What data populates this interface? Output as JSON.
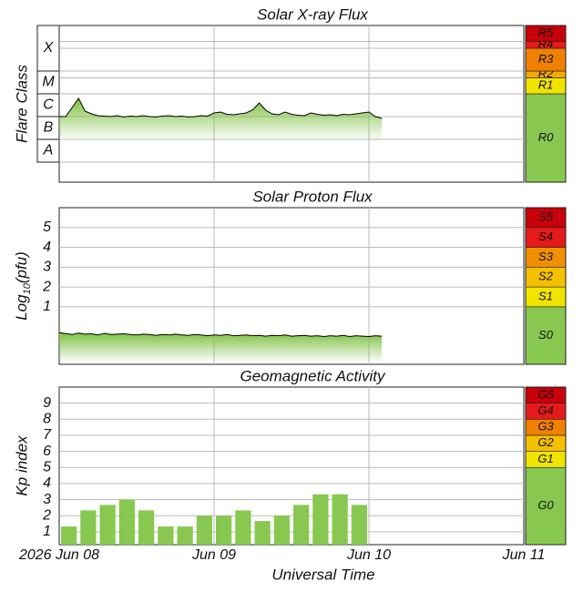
{
  "chart_data": [
    {
      "type": "line",
      "title": "Solar X-ray Flux",
      "ylabel": "Flare Class",
      "xlim": [
        0,
        72
      ],
      "xticks": [
        24,
        48
      ],
      "ylim": [
        -8.88,
        -2
      ],
      "classes": [
        {
          "label": "A",
          "from": -8
        },
        {
          "label": "B",
          "from": -7
        },
        {
          "label": "C",
          "from": -6
        },
        {
          "label": "M",
          "from": -5
        },
        {
          "label": "X",
          "from": -4
        }
      ],
      "scale": [
        {
          "label": "R0",
          "color": "#88c850"
        },
        {
          "label": "R1",
          "from": -5,
          "color": "#f0e400"
        },
        {
          "label": "R2",
          "from": -4.3,
          "color": "#f5a800"
        },
        {
          "label": "R3",
          "from": -4,
          "color": "#f08000"
        },
        {
          "label": "R4",
          "from": -3,
          "color": "#e51a1a"
        },
        {
          "label": "R5",
          "from": -2.7,
          "color": "#c8000a"
        }
      ],
      "series": [
        {
          "color": "#000000",
          "fill": "#7dc142",
          "x": [
            0,
            1,
            2,
            3,
            4,
            5,
            6,
            7,
            8,
            9,
            10,
            11,
            12,
            13,
            14,
            15,
            16,
            17,
            18,
            19,
            20,
            21,
            22,
            23,
            24,
            25,
            26,
            27,
            28,
            29,
            30,
            31,
            32,
            33,
            34,
            35,
            36,
            37,
            38,
            39,
            40,
            41,
            42,
            43,
            44,
            45,
            46,
            47,
            48,
            49,
            50
          ],
          "values": [
            -6.0,
            -6.0,
            -5.6,
            -5.2,
            -5.76,
            -5.88,
            -5.96,
            -5.98,
            -6.0,
            -5.96,
            -6.02,
            -5.98,
            -6.0,
            -5.96,
            -6.0,
            -6.02,
            -5.98,
            -5.96,
            -6.0,
            -5.98,
            -6.02,
            -6.0,
            -5.96,
            -5.98,
            -5.84,
            -5.8,
            -5.9,
            -5.92,
            -5.88,
            -5.84,
            -5.7,
            -5.4,
            -5.72,
            -5.88,
            -5.92,
            -5.8,
            -5.9,
            -5.94,
            -5.96,
            -5.84,
            -5.9,
            -5.94,
            -5.92,
            -5.96,
            -5.9,
            -5.92,
            -5.88,
            -5.84,
            -5.8,
            -6.0,
            -6.08
          ]
        }
      ]
    },
    {
      "type": "line",
      "title": "Solar Proton Flux",
      "ylabel": [
        "Log",
        "10",
        "(pfu)"
      ],
      "xlim": [
        0,
        72
      ],
      "xticks": [
        24,
        48
      ],
      "ylim": [
        -1.9,
        6
      ],
      "yticks": [
        1,
        2,
        3,
        4,
        5
      ],
      "scale": [
        {
          "label": "S0",
          "color": "#88c850"
        },
        {
          "label": "S1",
          "from": 1,
          "color": "#f0e400"
        },
        {
          "label": "S2",
          "from": 2,
          "color": "#f5c000"
        },
        {
          "label": "S3",
          "from": 3,
          "color": "#f09000"
        },
        {
          "label": "S4",
          "from": 4,
          "color": "#e51a1a"
        },
        {
          "label": "S5",
          "from": 5,
          "color": "#c8000a"
        }
      ],
      "series": [
        {
          "color": "#000000",
          "fill": "#7dc142",
          "x": [
            0,
            1,
            2,
            3,
            4,
            5,
            6,
            7,
            8,
            9,
            10,
            11,
            12,
            13,
            14,
            15,
            16,
            17,
            18,
            19,
            20,
            21,
            22,
            23,
            24,
            25,
            26,
            27,
            28,
            29,
            30,
            31,
            32,
            33,
            34,
            35,
            36,
            37,
            38,
            39,
            40,
            41,
            42,
            43,
            44,
            45,
            46,
            47,
            48,
            49,
            50
          ],
          "values": [
            -0.3,
            -0.35,
            -0.4,
            -0.32,
            -0.38,
            -0.36,
            -0.42,
            -0.34,
            -0.4,
            -0.38,
            -0.36,
            -0.4,
            -0.42,
            -0.38,
            -0.4,
            -0.44,
            -0.4,
            -0.42,
            -0.38,
            -0.42,
            -0.44,
            -0.4,
            -0.42,
            -0.46,
            -0.42,
            -0.44,
            -0.4,
            -0.46,
            -0.44,
            -0.42,
            -0.46,
            -0.44,
            -0.48,
            -0.44,
            -0.46,
            -0.42,
            -0.48,
            -0.46,
            -0.44,
            -0.48,
            -0.46,
            -0.5,
            -0.46,
            -0.48,
            -0.44,
            -0.5,
            -0.46,
            -0.48,
            -0.5,
            -0.46,
            -0.48
          ]
        }
      ]
    },
    {
      "type": "bar",
      "title": "Geomagnetic Activity",
      "ylabel": "Kp index",
      "xlabel": "Universal Time",
      "xlim": [
        0,
        72
      ],
      "xticks": [
        {
          "value": 0,
          "label": "2026 Jun 08"
        },
        {
          "value": 24,
          "label": "Jun 09"
        },
        {
          "value": 48,
          "label": "Jun 10"
        },
        {
          "value": 72,
          "label": "Jun 11"
        }
      ],
      "ylim": [
        0.2,
        10
      ],
      "yticks": [
        1,
        2,
        3,
        4,
        5,
        6,
        7,
        8,
        9
      ],
      "bar_width": 3,
      "scale": [
        {
          "label": "G0",
          "color": "#88c850"
        },
        {
          "label": "G1",
          "from": 5,
          "color": "#f0e400"
        },
        {
          "label": "G2",
          "from": 6,
          "color": "#f5c000"
        },
        {
          "label": "G3",
          "from": 7,
          "color": "#f08000"
        },
        {
          "label": "G4",
          "from": 8,
          "color": "#e51a1a"
        },
        {
          "label": "G5",
          "from": 9,
          "color": "#c8000a"
        }
      ],
      "series": [
        {
          "color": "#88c850",
          "x": [
            0,
            3,
            6,
            9,
            12,
            15,
            18,
            21,
            24,
            27,
            30,
            33,
            36,
            39,
            42,
            45
          ],
          "values": [
            1.33,
            2.33,
            2.67,
            3.0,
            2.33,
            1.33,
            1.33,
            2.0,
            2.0,
            2.33,
            1.67,
            2.0,
            2.67,
            3.33,
            3.33,
            2.67
          ]
        }
      ]
    }
  ]
}
